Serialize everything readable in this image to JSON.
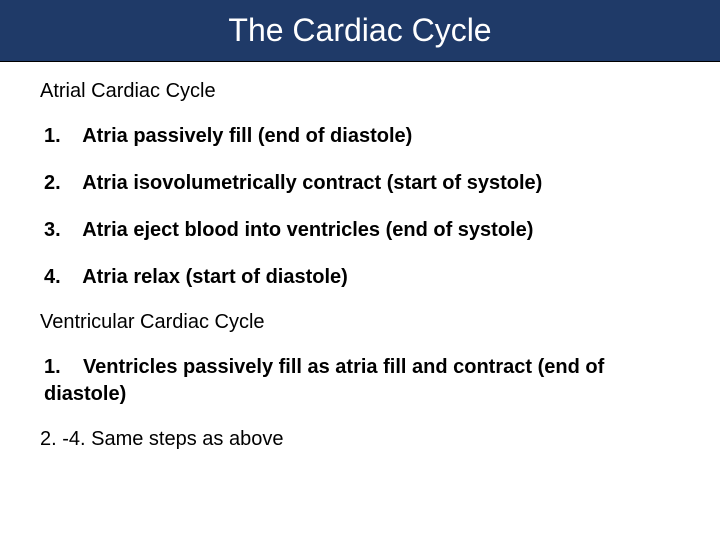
{
  "colors": {
    "title_bg": "#1f3a68",
    "title_text": "#ffffff",
    "body_bg": "#ffffff",
    "text": "#000000"
  },
  "typography": {
    "title_fontsize": 32,
    "heading_fontsize": 20,
    "body_fontsize": 20,
    "list_fontweight": 700,
    "heading_fontweight": 400
  },
  "title": "The Cardiac Cycle",
  "section1": {
    "heading": "Atrial Cardiac Cycle",
    "items": [
      {
        "num": "1.",
        "text": "Atria passively fill (end of diastole)"
      },
      {
        "num": "2.",
        "text": "Atria isovolumetrically contract  (start of systole)"
      },
      {
        "num": "3.",
        "text": "Atria eject blood into ventricles (end of systole)"
      },
      {
        "num": "4.",
        "text": "Atria relax (start of diastole)"
      }
    ]
  },
  "section2": {
    "heading": "Ventricular Cardiac Cycle",
    "items": [
      {
        "num": "1.",
        "text": "Ventricles passively fill as atria fill and contract (end of diastole)"
      }
    ],
    "note": "2. -4. Same steps as above"
  }
}
